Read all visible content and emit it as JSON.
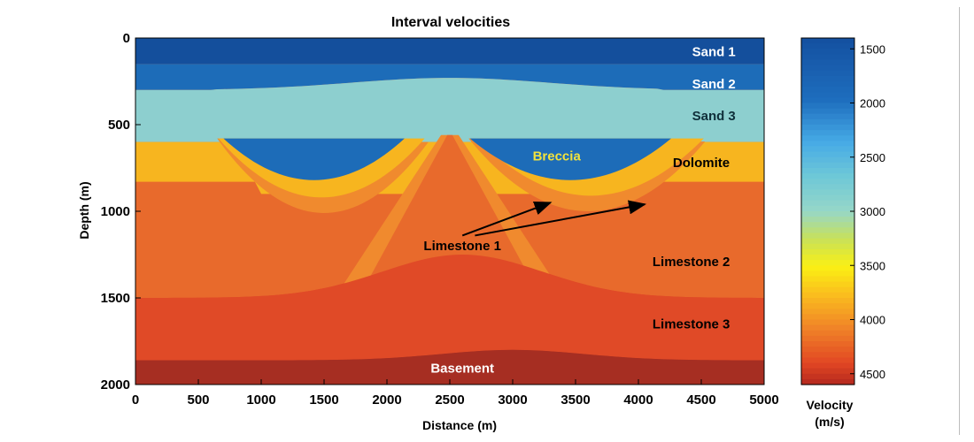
{
  "chart_data": {
    "type": "heatmap",
    "title": "Interval velocities",
    "xlabel": "Distance (m)",
    "ylabel": "Depth (m)",
    "xlim": [
      0,
      5000
    ],
    "ylim": [
      0,
      2000
    ],
    "y_reversed": true,
    "xticks": [
      "0",
      "500",
      "1000",
      "1500",
      "2000",
      "2500",
      "3000",
      "3500",
      "4000",
      "4500",
      "5000"
    ],
    "yticks": [
      "0",
      "500",
      "1000",
      "1500",
      "2000"
    ],
    "colorbar": {
      "label_line1": "Velocity",
      "label_line2": "(m/s)",
      "range": [
        1400,
        4600
      ],
      "ticks": [
        "1500",
        "2000",
        "2500",
        "3000",
        "3500",
        "4000",
        "4500"
      ],
      "colormap": "jet-reversed"
    },
    "layers": [
      {
        "name": "Sand 1",
        "velocity": 1500,
        "color": "#144f9c"
      },
      {
        "name": "Sand 2",
        "velocity": 1700,
        "color": "#1d6cb8"
      },
      {
        "name": "Sand 3",
        "velocity": 2800,
        "color": "#8dcfcf"
      },
      {
        "name": "Breccia",
        "velocity": 1700,
        "color": "#1d6cb8"
      },
      {
        "name": "Dolomite",
        "velocity": 3700,
        "color": "#f7b51f"
      },
      {
        "name": "Limestone 1",
        "velocity": 3950,
        "color": "#f08a2e"
      },
      {
        "name": "Limestone 2",
        "velocity": 4150,
        "color": "#e86a2c"
      },
      {
        "name": "Limestone 3",
        "velocity": 4400,
        "color": "#e04a27"
      },
      {
        "name": "Basement",
        "velocity": 4600,
        "color": "#a62e22"
      }
    ],
    "labels": [
      {
        "text": "Sand 1",
        "x": 4600,
        "y": 80,
        "color": "#ffffff"
      },
      {
        "text": "Sand 2",
        "x": 4600,
        "y": 265,
        "color": "#ffffff"
      },
      {
        "text": "Sand 3",
        "x": 4600,
        "y": 450,
        "color": "#0f2f3a"
      },
      {
        "text": "Breccia",
        "x": 3350,
        "y": 680,
        "color": "#f2e23c"
      },
      {
        "text": "Dolomite",
        "x": 4500,
        "y": 720,
        "color": "#000000"
      },
      {
        "text": "Limestone 1",
        "x": 2600,
        "y": 1200,
        "color": "#000000"
      },
      {
        "text": "Limestone 2",
        "x": 4420,
        "y": 1290,
        "color": "#000000"
      },
      {
        "text": "Limestone 3",
        "x": 4420,
        "y": 1650,
        "color": "#000000"
      },
      {
        "text": "Basement",
        "x": 2600,
        "y": 1905,
        "color": "#ffffff"
      }
    ],
    "arrows": [
      {
        "from": [
          2600,
          1140
        ],
        "to": [
          3300,
          950
        ]
      },
      {
        "from": [
          2700,
          1140
        ],
        "to": [
          4050,
          960
        ]
      }
    ]
  }
}
